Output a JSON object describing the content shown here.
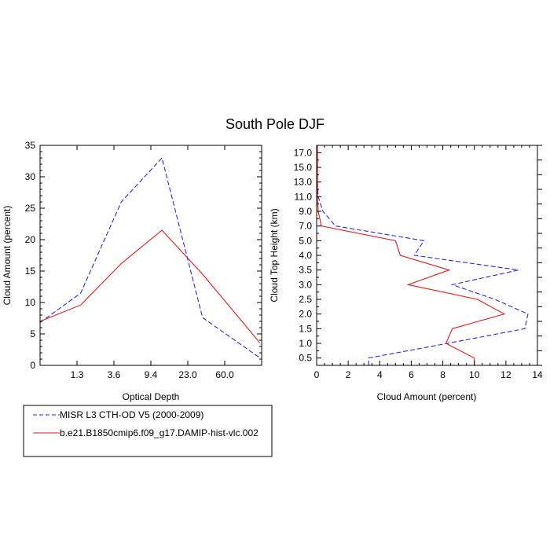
{
  "title": "South Pole DJF",
  "colors": {
    "obs": "#2a2add",
    "model": "#e01b1b"
  },
  "legend": {
    "items": [
      {
        "label": "MISR L3 CTH-OD V5 (2000-2009)",
        "color": "#2a2add",
        "dash": true
      },
      {
        "label": "b.e21.B1850cmip6.f09_g17.DAMIP-hist-vlc.002",
        "color": "#e01b1b",
        "dash": false
      }
    ]
  },
  "chart_data": [
    {
      "type": "line",
      "xlabel": "Optical Depth",
      "ylabel": "Cloud Amount (percent)",
      "categories": [
        "1.3",
        "3.6",
        "9.4",
        "23.0",
        "60.0"
      ],
      "x": [
        0.0,
        1.0,
        2.0,
        3.0,
        4.0,
        5.0,
        6.0
      ],
      "xlim": [
        0.0,
        6.0
      ],
      "ylim": [
        0,
        35
      ],
      "yticks": [
        0,
        5,
        10,
        15,
        20,
        25,
        30,
        35
      ],
      "series": [
        {
          "name": "MISR L3 CTH-OD V5 (2000-2009)",
          "values": [
            6.8,
            11.5,
            26.0,
            33.0,
            7.6,
            1.2
          ],
          "x": [
            0.0,
            1.1,
            2.2,
            3.3,
            4.4,
            5.95
          ]
        },
        {
          "name": "b.e21.B1850cmip6.f09_g17.DAMIP-hist-vlc.002",
          "values": [
            7.0,
            9.6,
            16.2,
            21.5,
            14.5,
            3.6
          ],
          "x": [
            0.0,
            1.1,
            2.2,
            3.3,
            4.4,
            5.95
          ]
        }
      ]
    },
    {
      "type": "line",
      "xlabel": "Cloud Amount (percent)",
      "ylabel": "Cloud Top Height (km)",
      "xlim": [
        0,
        14
      ],
      "xticks": [
        0,
        2,
        4,
        6,
        8,
        10,
        12,
        14
      ],
      "ytick_labels": [
        "0.5",
        "1.0",
        "1.5",
        "2.0",
        "2.5",
        "3.0",
        "3.5",
        "4.0",
        "5.0",
        "7.0",
        "9.0",
        "11.0",
        "13.0",
        "15.0",
        "17.0"
      ],
      "series": [
        {
          "name": "MISR L3 CTH-OD V5 (2000-2009)",
          "values": [
            3.3,
            8.3,
            13.2,
            13.4,
            11.3,
            8.6,
            12.8,
            6.2,
            6.8,
            1.2,
            0.4,
            0.1,
            0.05,
            0.05,
            0.05
          ]
        },
        {
          "name": "b.e21.B1850cmip6.f09_g17.DAMIP-hist-vlc.002",
          "values": [
            10.0,
            8.2,
            8.6,
            11.9,
            10.2,
            5.8,
            8.4,
            5.3,
            5.0,
            0.3,
            0.1,
            0.05,
            0.05,
            0.05,
            0.05
          ]
        }
      ]
    }
  ]
}
